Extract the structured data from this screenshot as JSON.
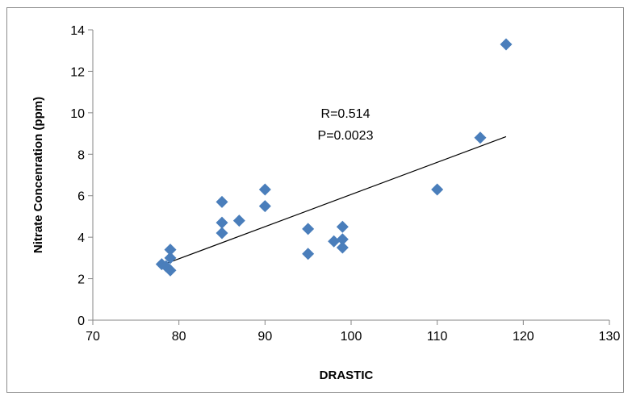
{
  "chart_data": {
    "type": "scatter",
    "xlabel": "DRASTIC",
    "ylabel": "Nitrate Concenration (ppm)",
    "xlim": [
      70,
      130
    ],
    "ylim": [
      0,
      14
    ],
    "xticks": [
      70,
      80,
      90,
      100,
      110,
      120,
      130
    ],
    "yticks": [
      0,
      2,
      4,
      6,
      8,
      10,
      12,
      14
    ],
    "grid": false,
    "legend": "none",
    "marker": "diamond",
    "marker_color": "#4a7ebb",
    "series": [
      {
        "x": [
          78,
          78.5,
          79,
          79,
          79,
          85,
          85,
          85,
          87,
          90,
          90,
          95,
          95,
          98,
          99,
          99,
          99,
          110,
          115,
          118
        ],
        "y": [
          2.7,
          2.6,
          3.4,
          3.0,
          2.4,
          5.7,
          4.7,
          4.2,
          4.8,
          6.3,
          5.5,
          4.4,
          3.2,
          3.8,
          4.5,
          3.9,
          3.5,
          6.3,
          8.8,
          13.3
        ]
      }
    ],
    "trendline": {
      "type": "linear",
      "color": "#000000",
      "x": [
        78,
        118
      ],
      "y": [
        2.65,
        8.85
      ]
    },
    "annotations": [
      "R=0.514",
      "P=0.0023"
    ]
  }
}
